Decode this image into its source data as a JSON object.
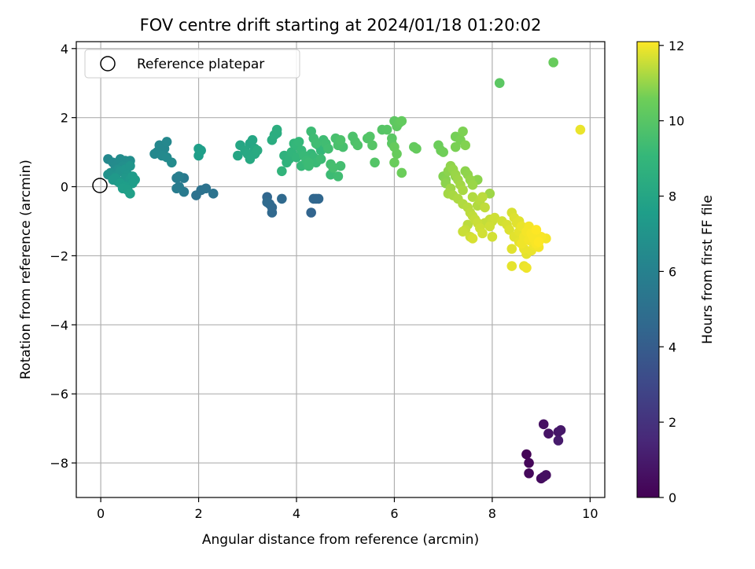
{
  "chart_data": {
    "type": "scatter",
    "title": "FOV centre drift starting at 2024/01/18 01:20:02",
    "xlabel": "Angular distance from reference (arcmin)",
    "ylabel": "Rotation from reference (arcmin)",
    "xlim": [
      -0.5,
      10.3
    ],
    "ylim": [
      -9.0,
      4.2
    ],
    "xticks": [
      0,
      2,
      4,
      6,
      8,
      10
    ],
    "yticks": [
      -8,
      -6,
      -4,
      -2,
      0,
      2,
      4
    ],
    "grid": true,
    "legend": {
      "entries": [
        "Reference platepar"
      ],
      "placement": "top-left"
    },
    "reference_point": {
      "x": 0,
      "y": 0,
      "label": "Reference platepar"
    },
    "colorbar": {
      "label": "Hours from first FF file",
      "colormap": "viridis",
      "range": [
        0,
        12.1
      ],
      "ticks": [
        0,
        2,
        4,
        6,
        8,
        10,
        12
      ]
    },
    "points": [
      {
        "x": 8.7,
        "y": -7.75,
        "h": 0.1
      },
      {
        "x": 8.75,
        "y": -8.0,
        "h": 0.2
      },
      {
        "x": 8.75,
        "y": -8.3,
        "h": 0.3
      },
      {
        "x": 9.0,
        "y": -8.45,
        "h": 0.4
      },
      {
        "x": 9.1,
        "y": -8.35,
        "h": 0.5
      },
      {
        "x": 9.05,
        "y": -8.4,
        "h": 0.55
      },
      {
        "x": 9.05,
        "y": -6.88,
        "h": 0.6
      },
      {
        "x": 9.15,
        "y": -7.15,
        "h": 0.7
      },
      {
        "x": 9.35,
        "y": -7.1,
        "h": 0.8
      },
      {
        "x": 9.4,
        "y": -7.05,
        "h": 0.9
      },
      {
        "x": 9.35,
        "y": -7.35,
        "h": 1.0
      },
      {
        "x": 3.4,
        "y": -0.3,
        "h": 4.5
      },
      {
        "x": 3.45,
        "y": -0.5,
        "h": 4.55
      },
      {
        "x": 3.5,
        "y": -0.75,
        "h": 4.6
      },
      {
        "x": 3.5,
        "y": -0.6,
        "h": 4.6
      },
      {
        "x": 3.7,
        "y": -0.35,
        "h": 4.65
      },
      {
        "x": 3.4,
        "y": -0.45,
        "h": 4.7
      },
      {
        "x": 4.3,
        "y": -0.75,
        "h": 4.4
      },
      {
        "x": 4.35,
        "y": -0.35,
        "h": 4.5
      },
      {
        "x": 4.45,
        "y": -0.35,
        "h": 4.5
      },
      {
        "x": 4.4,
        "y": -0.35,
        "h": 4.45
      },
      {
        "x": 1.95,
        "y": -0.25,
        "h": 5.1
      },
      {
        "x": 2.05,
        "y": -0.1,
        "h": 5.1
      },
      {
        "x": 2.15,
        "y": -0.05,
        "h": 5.15
      },
      {
        "x": 2.3,
        "y": -0.2,
        "h": 5.2
      },
      {
        "x": 1.6,
        "y": 0.3,
        "h": 5.8
      },
      {
        "x": 1.55,
        "y": 0.25,
        "h": 5.7
      },
      {
        "x": 1.7,
        "y": 0.25,
        "h": 5.6
      },
      {
        "x": 1.6,
        "y": 0.0,
        "h": 5.7
      },
      {
        "x": 1.7,
        "y": -0.15,
        "h": 5.6
      },
      {
        "x": 1.55,
        "y": -0.05,
        "h": 5.7
      },
      {
        "x": 2.0,
        "y": 1.1,
        "h": 7.6
      },
      {
        "x": 2.05,
        "y": 1.05,
        "h": 7.6
      },
      {
        "x": 2.0,
        "y": 0.9,
        "h": 7.55
      },
      {
        "x": 1.2,
        "y": 1.2,
        "h": 6.3
      },
      {
        "x": 1.35,
        "y": 1.3,
        "h": 6.35
      },
      {
        "x": 1.15,
        "y": 1.0,
        "h": 6.4
      },
      {
        "x": 1.1,
        "y": 0.95,
        "h": 6.4
      },
      {
        "x": 1.25,
        "y": 0.9,
        "h": 6.45
      },
      {
        "x": 1.35,
        "y": 0.85,
        "h": 6.5
      },
      {
        "x": 1.45,
        "y": 0.7,
        "h": 6.55
      },
      {
        "x": 1.3,
        "y": 1.1,
        "h": 6.3
      },
      {
        "x": 0.15,
        "y": 0.8,
        "h": 6.4
      },
      {
        "x": 0.25,
        "y": 0.7,
        "h": 6.5
      },
      {
        "x": 0.3,
        "y": 0.6,
        "h": 6.55
      },
      {
        "x": 0.4,
        "y": 0.8,
        "h": 6.6
      },
      {
        "x": 0.5,
        "y": 0.75,
        "h": 6.65
      },
      {
        "x": 0.6,
        "y": 0.75,
        "h": 6.7
      },
      {
        "x": 0.45,
        "y": 0.6,
        "h": 6.75
      },
      {
        "x": 0.35,
        "y": 0.5,
        "h": 6.8
      },
      {
        "x": 0.2,
        "y": 0.4,
        "h": 6.85
      },
      {
        "x": 0.15,
        "y": 0.35,
        "h": 6.9
      },
      {
        "x": 0.3,
        "y": 0.3,
        "h": 6.95
      },
      {
        "x": 0.4,
        "y": 0.45,
        "h": 7.0
      },
      {
        "x": 0.5,
        "y": 0.5,
        "h": 7.05
      },
      {
        "x": 0.6,
        "y": 0.6,
        "h": 7.1
      },
      {
        "x": 0.55,
        "y": 0.35,
        "h": 7.15
      },
      {
        "x": 0.5,
        "y": 0.25,
        "h": 7.2
      },
      {
        "x": 0.35,
        "y": 0.15,
        "h": 7.25
      },
      {
        "x": 0.25,
        "y": 0.2,
        "h": 7.3
      },
      {
        "x": 0.6,
        "y": 0.2,
        "h": 7.35
      },
      {
        "x": 0.65,
        "y": 0.3,
        "h": 7.4
      },
      {
        "x": 0.7,
        "y": 0.2,
        "h": 7.45
      },
      {
        "x": 0.65,
        "y": 0.1,
        "h": 7.5
      },
      {
        "x": 0.5,
        "y": 0.0,
        "h": 7.55
      },
      {
        "x": 0.45,
        "y": -0.05,
        "h": 7.6
      },
      {
        "x": 0.55,
        "y": -0.1,
        "h": 7.65
      },
      {
        "x": 0.6,
        "y": -0.2,
        "h": 7.7
      },
      {
        "x": 0.4,
        "y": 0.1,
        "h": 7.5
      },
      {
        "x": 0.3,
        "y": 0.25,
        "h": 7.3
      },
      {
        "x": 2.8,
        "y": 0.9,
        "h": 8.0
      },
      {
        "x": 2.85,
        "y": 1.2,
        "h": 8.05
      },
      {
        "x": 2.95,
        "y": 1.05,
        "h": 8.1
      },
      {
        "x": 3.05,
        "y": 1.25,
        "h": 8.0
      },
      {
        "x": 3.1,
        "y": 1.35,
        "h": 8.05
      },
      {
        "x": 3.15,
        "y": 1.1,
        "h": 8.1
      },
      {
        "x": 3.0,
        "y": 0.95,
        "h": 8.15
      },
      {
        "x": 3.05,
        "y": 0.8,
        "h": 8.2
      },
      {
        "x": 3.15,
        "y": 0.95,
        "h": 8.25
      },
      {
        "x": 3.2,
        "y": 1.05,
        "h": 8.3
      },
      {
        "x": 3.5,
        "y": 1.35,
        "h": 8.4
      },
      {
        "x": 3.55,
        "y": 1.5,
        "h": 8.45
      },
      {
        "x": 3.6,
        "y": 1.65,
        "h": 8.5
      },
      {
        "x": 3.6,
        "y": 1.55,
        "h": 8.45
      },
      {
        "x": 3.75,
        "y": 0.9,
        "h": 8.7
      },
      {
        "x": 3.8,
        "y": 0.7,
        "h": 8.75
      },
      {
        "x": 3.85,
        "y": 0.8,
        "h": 8.8
      },
      {
        "x": 3.7,
        "y": 0.45,
        "h": 8.85
      },
      {
        "x": 3.9,
        "y": 1.0,
        "h": 8.9
      },
      {
        "x": 3.95,
        "y": 1.25,
        "h": 8.95
      },
      {
        "x": 4.0,
        "y": 1.2,
        "h": 9.0
      },
      {
        "x": 4.05,
        "y": 1.3,
        "h": 9.05
      },
      {
        "x": 4.1,
        "y": 1.05,
        "h": 9.1
      },
      {
        "x": 4.15,
        "y": 0.9,
        "h": 9.15
      },
      {
        "x": 4.2,
        "y": 0.75,
        "h": 9.2
      },
      {
        "x": 4.25,
        "y": 0.7,
        "h": 9.25
      },
      {
        "x": 4.3,
        "y": 1.6,
        "h": 9.3
      },
      {
        "x": 4.35,
        "y": 1.4,
        "h": 9.35
      },
      {
        "x": 4.4,
        "y": 1.25,
        "h": 9.4
      },
      {
        "x": 4.45,
        "y": 1.2,
        "h": 9.0
      },
      {
        "x": 4.5,
        "y": 1.05,
        "h": 9.05
      },
      {
        "x": 4.3,
        "y": 0.95,
        "h": 9.1
      },
      {
        "x": 4.35,
        "y": 0.85,
        "h": 9.15
      },
      {
        "x": 4.4,
        "y": 0.7,
        "h": 9.2
      },
      {
        "x": 4.25,
        "y": 0.6,
        "h": 9.25
      },
      {
        "x": 4.5,
        "y": 0.8,
        "h": 9.3
      },
      {
        "x": 4.55,
        "y": 1.35,
        "h": 9.35
      },
      {
        "x": 4.6,
        "y": 1.25,
        "h": 9.4
      },
      {
        "x": 4.65,
        "y": 1.1,
        "h": 9.45
      },
      {
        "x": 4.7,
        "y": 0.65,
        "h": 9.5
      },
      {
        "x": 4.75,
        "y": 0.55,
        "h": 9.55
      },
      {
        "x": 4.8,
        "y": 1.4,
        "h": 9.6
      },
      {
        "x": 4.85,
        "y": 1.2,
        "h": 9.65
      },
      {
        "x": 4.9,
        "y": 1.35,
        "h": 9.7
      },
      {
        "x": 4.95,
        "y": 1.15,
        "h": 9.6
      },
      {
        "x": 4.85,
        "y": 0.3,
        "h": 9.4
      },
      {
        "x": 4.7,
        "y": 0.35,
        "h": 9.3
      },
      {
        "x": 4.9,
        "y": 0.6,
        "h": 9.5
      },
      {
        "x": 4.0,
        "y": 0.85,
        "h": 8.95
      },
      {
        "x": 4.1,
        "y": 0.6,
        "h": 9.1
      },
      {
        "x": 5.15,
        "y": 1.45,
        "h": 9.7
      },
      {
        "x": 5.2,
        "y": 1.3,
        "h": 9.75
      },
      {
        "x": 5.25,
        "y": 1.2,
        "h": 9.8
      },
      {
        "x": 5.45,
        "y": 1.4,
        "h": 9.85
      },
      {
        "x": 5.5,
        "y": 1.45,
        "h": 9.9
      },
      {
        "x": 5.55,
        "y": 1.2,
        "h": 9.95
      },
      {
        "x": 5.6,
        "y": 0.7,
        "h": 9.9
      },
      {
        "x": 5.75,
        "y": 1.65,
        "h": 9.95
      },
      {
        "x": 5.85,
        "y": 1.65,
        "h": 10.0
      },
      {
        "x": 5.95,
        "y": 1.4,
        "h": 10.05
      },
      {
        "x": 5.95,
        "y": 1.25,
        "h": 10.1
      },
      {
        "x": 6.0,
        "y": 1.9,
        "h": 10.15
      },
      {
        "x": 6.05,
        "y": 1.75,
        "h": 10.2
      },
      {
        "x": 6.1,
        "y": 1.85,
        "h": 10.25
      },
      {
        "x": 6.15,
        "y": 1.9,
        "h": 10.3
      },
      {
        "x": 6.0,
        "y": 1.15,
        "h": 10.35
      },
      {
        "x": 6.05,
        "y": 0.95,
        "h": 10.4
      },
      {
        "x": 6.0,
        "y": 0.7,
        "h": 10.45
      },
      {
        "x": 6.15,
        "y": 0.4,
        "h": 10.5
      },
      {
        "x": 6.4,
        "y": 1.15,
        "h": 10.3
      },
      {
        "x": 6.45,
        "y": 1.1,
        "h": 10.35
      },
      {
        "x": 6.9,
        "y": 1.2,
        "h": 10.5
      },
      {
        "x": 6.95,
        "y": 1.05,
        "h": 10.55
      },
      {
        "x": 7.0,
        "y": 1.0,
        "h": 10.6
      },
      {
        "x": 7.25,
        "y": 1.45,
        "h": 10.65
      },
      {
        "x": 7.35,
        "y": 1.35,
        "h": 10.7
      },
      {
        "x": 7.4,
        "y": 1.6,
        "h": 10.75
      },
      {
        "x": 7.45,
        "y": 1.2,
        "h": 10.8
      },
      {
        "x": 7.25,
        "y": 1.15,
        "h": 10.7
      },
      {
        "x": 7.0,
        "y": 0.3,
        "h": 10.8
      },
      {
        "x": 7.05,
        "y": 0.2,
        "h": 10.85
      },
      {
        "x": 7.1,
        "y": 0.45,
        "h": 10.9
      },
      {
        "x": 7.15,
        "y": 0.6,
        "h": 10.95
      },
      {
        "x": 7.2,
        "y": 0.5,
        "h": 11.0
      },
      {
        "x": 7.25,
        "y": 0.35,
        "h": 11.05
      },
      {
        "x": 7.3,
        "y": 0.2,
        "h": 11.1
      },
      {
        "x": 7.35,
        "y": 0.05,
        "h": 11.15
      },
      {
        "x": 7.4,
        "y": -0.1,
        "h": 11.2
      },
      {
        "x": 7.45,
        "y": 0.45,
        "h": 10.9
      },
      {
        "x": 7.5,
        "y": 0.35,
        "h": 10.95
      },
      {
        "x": 7.55,
        "y": 0.2,
        "h": 11.0
      },
      {
        "x": 7.6,
        "y": 0.05,
        "h": 11.05
      },
      {
        "x": 7.15,
        "y": -0.05,
        "h": 11.1
      },
      {
        "x": 7.1,
        "y": -0.2,
        "h": 11.15
      },
      {
        "x": 7.2,
        "y": -0.25,
        "h": 11.2
      },
      {
        "x": 7.3,
        "y": -0.35,
        "h": 11.25
      },
      {
        "x": 7.4,
        "y": -0.5,
        "h": 11.3
      },
      {
        "x": 7.5,
        "y": -0.6,
        "h": 11.35
      },
      {
        "x": 7.55,
        "y": -0.75,
        "h": 11.4
      },
      {
        "x": 7.6,
        "y": -0.85,
        "h": 11.45
      },
      {
        "x": 7.65,
        "y": -0.95,
        "h": 11.5
      },
      {
        "x": 7.7,
        "y": -1.05,
        "h": 11.55
      },
      {
        "x": 7.75,
        "y": -1.2,
        "h": 11.6
      },
      {
        "x": 7.8,
        "y": -1.35,
        "h": 11.65
      },
      {
        "x": 7.5,
        "y": -1.1,
        "h": 11.4
      },
      {
        "x": 7.45,
        "y": -1.25,
        "h": 11.5
      },
      {
        "x": 7.55,
        "y": -1.45,
        "h": 11.6
      },
      {
        "x": 7.4,
        "y": -1.3,
        "h": 11.55
      },
      {
        "x": 7.7,
        "y": -0.55,
        "h": 11.3
      },
      {
        "x": 7.75,
        "y": -0.4,
        "h": 11.35
      },
      {
        "x": 7.8,
        "y": -0.3,
        "h": 11.4
      },
      {
        "x": 7.85,
        "y": -0.6,
        "h": 11.45
      },
      {
        "x": 7.95,
        "y": -0.95,
        "h": 11.5
      },
      {
        "x": 8.0,
        "y": -1.0,
        "h": 11.55
      },
      {
        "x": 8.05,
        "y": -0.9,
        "h": 11.6
      },
      {
        "x": 7.95,
        "y": -1.15,
        "h": 11.6
      },
      {
        "x": 8.0,
        "y": -1.45,
        "h": 11.65
      },
      {
        "x": 7.6,
        "y": -1.5,
        "h": 11.7
      },
      {
        "x": 7.25,
        "y": 0.3,
        "h": 10.85
      },
      {
        "x": 7.05,
        "y": 0.1,
        "h": 10.9
      },
      {
        "x": 7.6,
        "y": -0.3,
        "h": 11.3
      },
      {
        "x": 7.7,
        "y": 0.2,
        "h": 10.9
      },
      {
        "x": 7.95,
        "y": -0.2,
        "h": 11.1
      },
      {
        "x": 7.85,
        "y": -1.05,
        "h": 11.5
      },
      {
        "x": 8.15,
        "y": 3.0,
        "h": 10.1
      },
      {
        "x": 9.25,
        "y": 3.6,
        "h": 10.4
      },
      {
        "x": 9.8,
        "y": 1.65,
        "h": 11.9
      },
      {
        "x": 8.2,
        "y": -1.0,
        "h": 11.65
      },
      {
        "x": 8.3,
        "y": -1.1,
        "h": 11.7
      },
      {
        "x": 8.35,
        "y": -1.25,
        "h": 11.75
      },
      {
        "x": 8.4,
        "y": -0.75,
        "h": 11.7
      },
      {
        "x": 8.45,
        "y": -0.9,
        "h": 11.75
      },
      {
        "x": 8.5,
        "y": -1.05,
        "h": 11.8
      },
      {
        "x": 8.45,
        "y": -1.45,
        "h": 11.8
      },
      {
        "x": 8.55,
        "y": -1.3,
        "h": 11.85
      },
      {
        "x": 8.6,
        "y": -1.15,
        "h": 11.9
      },
      {
        "x": 8.65,
        "y": -1.45,
        "h": 11.95
      },
      {
        "x": 8.7,
        "y": -1.3,
        "h": 12.0
      },
      {
        "x": 8.75,
        "y": -1.55,
        "h": 12.0
      },
      {
        "x": 8.8,
        "y": -1.35,
        "h": 12.05
      },
      {
        "x": 8.85,
        "y": -1.5,
        "h": 12.05
      },
      {
        "x": 8.9,
        "y": -1.25,
        "h": 12.1
      },
      {
        "x": 8.95,
        "y": -1.6,
        "h": 12.1
      },
      {
        "x": 9.0,
        "y": -1.45,
        "h": 12.05
      },
      {
        "x": 9.1,
        "y": -1.5,
        "h": 12.0
      },
      {
        "x": 8.6,
        "y": -1.65,
        "h": 11.95
      },
      {
        "x": 8.65,
        "y": -1.8,
        "h": 11.9
      },
      {
        "x": 8.7,
        "y": -1.95,
        "h": 11.85
      },
      {
        "x": 8.8,
        "y": -1.85,
        "h": 11.9
      },
      {
        "x": 8.85,
        "y": -1.7,
        "h": 11.95
      },
      {
        "x": 8.95,
        "y": -1.75,
        "h": 12.0
      },
      {
        "x": 8.55,
        "y": -1.6,
        "h": 11.85
      },
      {
        "x": 8.4,
        "y": -1.8,
        "h": 11.8
      },
      {
        "x": 8.4,
        "y": -2.3,
        "h": 11.85
      },
      {
        "x": 8.65,
        "y": -2.3,
        "h": 11.9
      },
      {
        "x": 8.7,
        "y": -2.35,
        "h": 11.95
      },
      {
        "x": 8.75,
        "y": -1.15,
        "h": 12.0
      },
      {
        "x": 8.55,
        "y": -1.0,
        "h": 11.8
      },
      {
        "x": 8.9,
        "y": -1.65,
        "h": 12.05
      }
    ]
  }
}
